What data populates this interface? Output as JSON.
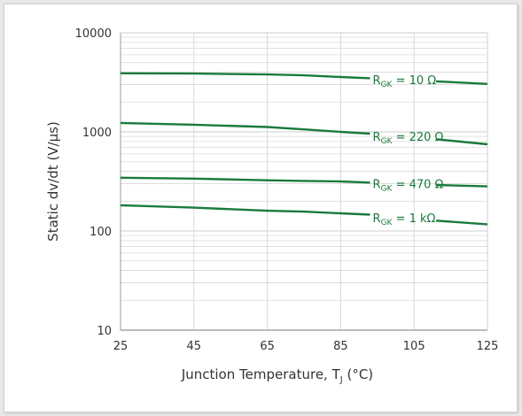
{
  "colors": {
    "series": "#1a7a3c",
    "grid": "#d8d8d8",
    "axis": "#999999",
    "text": "#333333",
    "background": "#ffffff"
  },
  "chart_data": {
    "type": "line",
    "title": "",
    "xlabel": "Junction Temperature, T",
    "xlabel_subscript": "J",
    "xlabel_unit": " (°C)",
    "ylabel": "Static dv/dt (V/µs)",
    "xlim": [
      25,
      125
    ],
    "ylim": [
      10,
      10000
    ],
    "yscale": "log",
    "grid": true,
    "xticks": [
      "25",
      "45",
      "65",
      "85",
      "105",
      "125"
    ],
    "yticks": [
      "10",
      "100",
      "1000",
      "10000"
    ],
    "series": [
      {
        "name": "R",
        "subscript": "GK",
        "value_text": " = 10 Ω",
        "x": [
          25,
          45,
          65,
          75,
          85,
          95,
          110,
          125
        ],
        "y": [
          3900,
          3880,
          3800,
          3720,
          3580,
          3450,
          3250,
          3050
        ]
      },
      {
        "name": "R",
        "subscript": "GK",
        "value_text": " = 220 Ω",
        "x": [
          25,
          45,
          65,
          75,
          85,
          95,
          110,
          125
        ],
        "y": [
          1230,
          1180,
          1120,
          1060,
          1000,
          950,
          850,
          750
        ]
      },
      {
        "name": "R",
        "subscript": "GK",
        "value_text": " = 470 Ω",
        "x": [
          25,
          45,
          65,
          75,
          85,
          95,
          110,
          125
        ],
        "y": [
          345,
          338,
          325,
          320,
          316,
          306,
          292,
          282
        ]
      },
      {
        "name": "R",
        "subscript": "GK",
        "value_text": " = 1 kΩ",
        "x": [
          25,
          45,
          65,
          75,
          85,
          95,
          110,
          125
        ],
        "y": [
          182,
          172,
          160,
          157,
          151,
          145,
          128,
          117
        ]
      }
    ]
  }
}
